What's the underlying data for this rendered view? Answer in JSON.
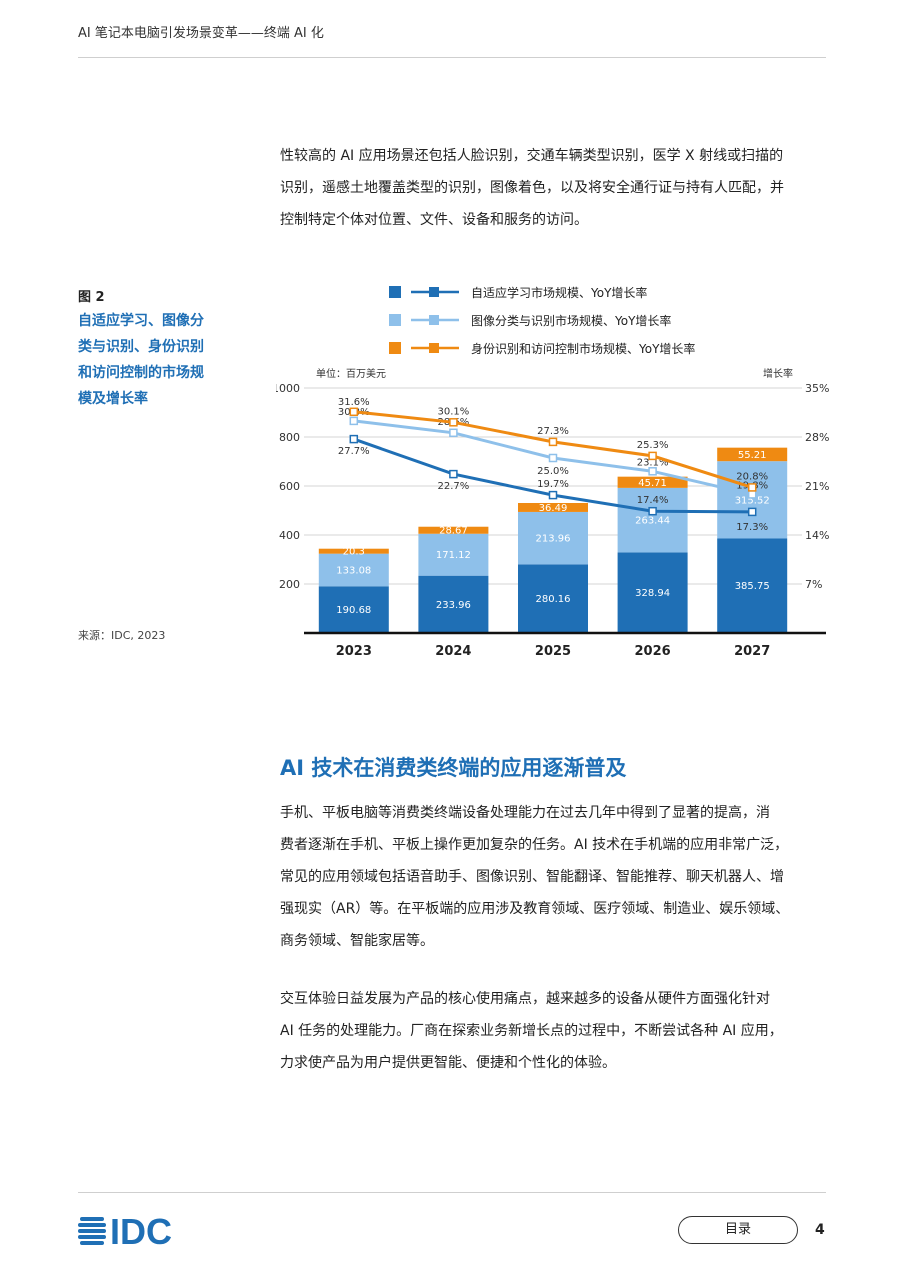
{
  "header": {
    "title": "AI 笔记本电脑引发场景变革——终端 AI 化"
  },
  "intro": {
    "lines": [
      "性较高的 AI 应用场景还包括人脸识别，交通车辆类型识别，医学 X 射线或扫描的",
      "识别，遥感土地覆盖类型的识别，图像着色，以及将安全通行证与持有人匹配，并",
      "控制特定个体对位置、文件、设备和服务的访问。"
    ]
  },
  "figure": {
    "number": "图 2",
    "title_lines": [
      "自适应学习、图像分",
      "类与识别、身份识别",
      "和访问控制的市场规",
      "模及增长率"
    ],
    "source": "来源：IDC, 2023"
  },
  "chart_data": {
    "type": "bar",
    "stacked": true,
    "categories": [
      "2023",
      "2024",
      "2025",
      "2026",
      "2027"
    ],
    "left_axis": {
      "label": "单位：百万美元",
      "ticks": [
        "200",
        "400",
        "600",
        "800",
        "1000"
      ],
      "range": [
        0,
        1000
      ]
    },
    "right_axis": {
      "label": "增长率",
      "ticks": [
        "7%",
        "14%",
        "21%",
        "28%",
        "35%"
      ],
      "range": [
        0,
        35
      ]
    },
    "series": [
      {
        "name": "自适应学习市场规模、YoY增长率",
        "color": "#1f6fb5",
        "values": [
          190.68,
          233.96,
          280.16,
          328.94,
          385.75
        ],
        "labels": [
          "190.68",
          "233.96",
          "280.16",
          "328.94",
          "385.75"
        ],
        "yoy": [
          27.7,
          22.7,
          19.7,
          17.4,
          17.3
        ],
        "yoy_labels": [
          "27.7%",
          "22.7%",
          "19.7%",
          "17.4%",
          "17.3%"
        ]
      },
      {
        "name": "图像分类与识别市场规模、YoY增长率",
        "color": "#8ec0ea",
        "values": [
          133.08,
          171.12,
          213.96,
          263.44,
          315.52
        ],
        "labels": [
          "133.08",
          "171.12",
          "213.96",
          "263.44",
          "315.52"
        ],
        "yoy": [
          30.3,
          28.6,
          25.0,
          23.1,
          19.8
        ],
        "yoy_labels": [
          "30.3%",
          "28.6%",
          "25.0%",
          "23.1%",
          "19.8%"
        ]
      },
      {
        "name": "身份识别和访问控制市场规模、YoY增长率",
        "color": "#ef8a12",
        "values": [
          20.3,
          28.67,
          36.49,
          45.71,
          55.21
        ],
        "labels": [
          "20.3",
          "28.67",
          "36.49",
          "45.71",
          "55.21"
        ],
        "yoy": [
          31.6,
          30.1,
          27.3,
          25.3,
          20.8
        ],
        "yoy_labels": [
          "31.6%",
          "30.1%",
          "27.3%",
          "25.3%",
          "20.8%"
        ]
      }
    ],
    "legend_position": "top"
  },
  "section": {
    "heading": "AI 技术在消费类终端的应用逐渐普及",
    "para1_lines": [
      "手机、平板电脑等消费类终端设备处理能力在过去几年中得到了显著的提高，消",
      "费者逐渐在手机、平板上操作更加复杂的任务。AI 技术在手机端的应用非常广泛，",
      "常见的应用领域包括语音助手、图像识别、智能翻译、智能推荐、聊天机器人、增",
      "强现实（AR）等。在平板端的应用涉及教育领域、医疗领域、制造业、娱乐领域、",
      "商务领域、智能家居等。"
    ],
    "para2_lines": [
      "交互体验日益发展为产品的核心使用痛点，越来越多的设备从硬件方面强化针对",
      "AI 任务的处理能力。厂商在探索业务新增长点的过程中，不断尝试各种 AI 应用，",
      "力求使产品为用户提供更智能、便捷和个性化的体验。"
    ]
  },
  "footer": {
    "logo": "IDC",
    "toc_label": "目录",
    "page_number": "4"
  }
}
